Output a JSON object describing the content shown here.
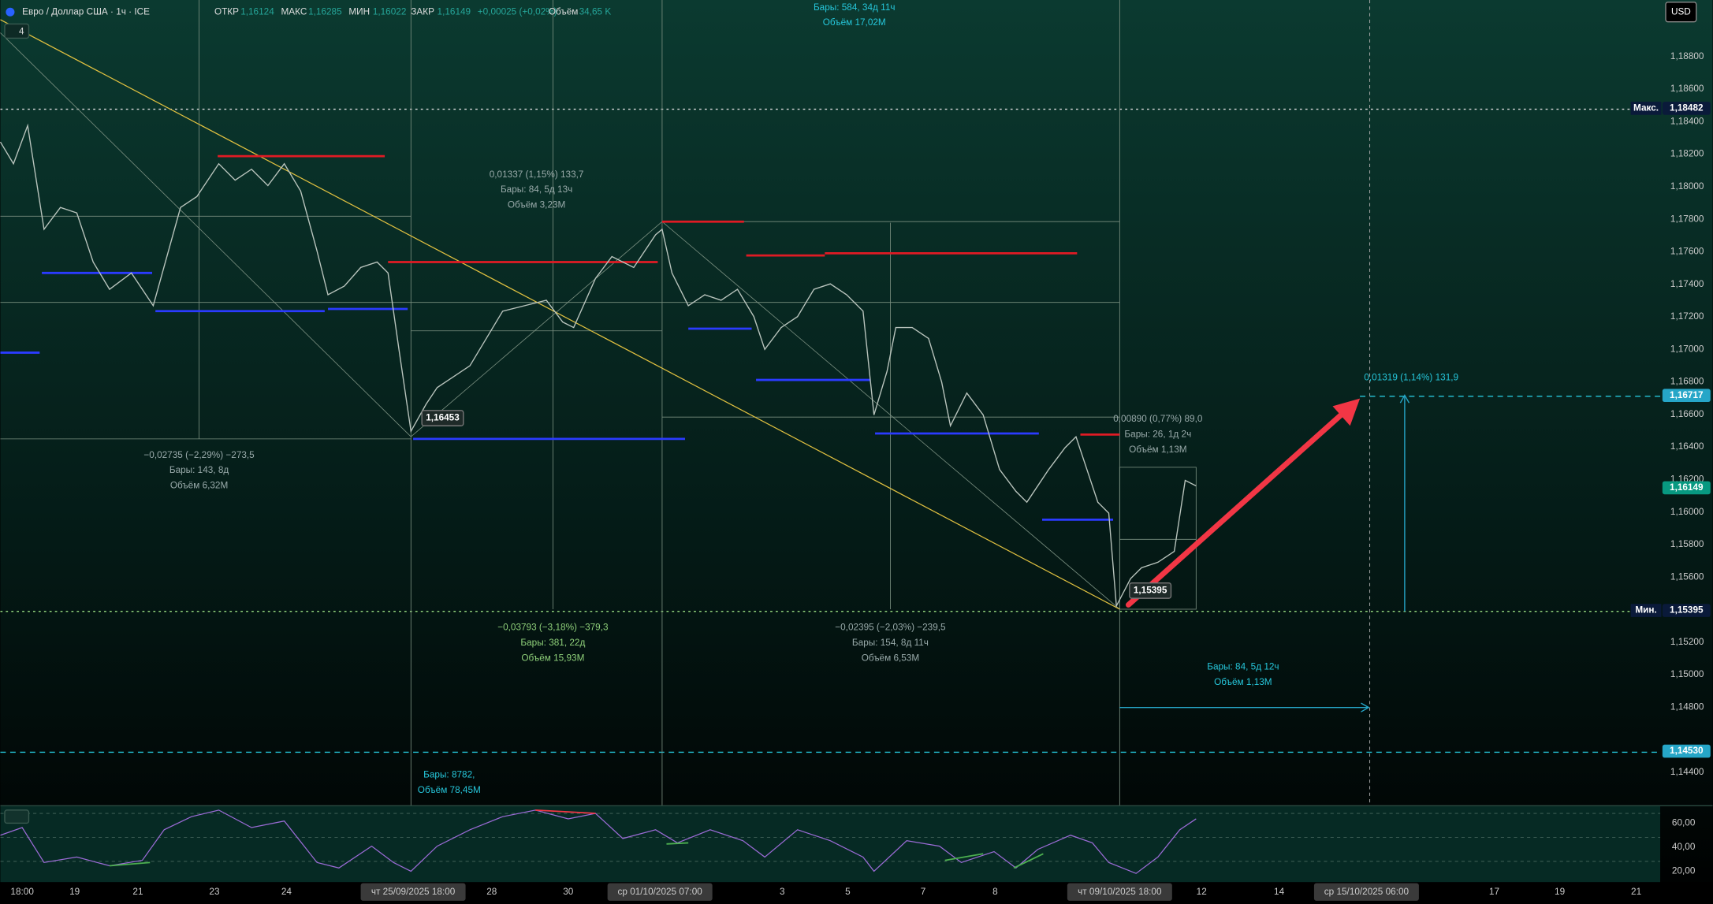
{
  "header": {
    "symbol": "Евро / Доллар США · 1ч · ICE",
    "fields": [
      {
        "label": "ОТКР",
        "value": "1,16124"
      },
      {
        "label": "МАКС",
        "value": "1,16285"
      },
      {
        "label": "МИН",
        "value": "1,16022"
      },
      {
        "label": "ЗАКР",
        "value": "1,16149"
      }
    ],
    "change": "+0,00025 (+0,02%)",
    "volume_label": "Объём",
    "volume": "34,65 K",
    "indicator_count": "4"
  },
  "currency": "USD",
  "price_axis": [
    "1,18800",
    "1,18600",
    "1,18400",
    "1,18200",
    "1,18000",
    "1,17800",
    "1,17600",
    "1,17400",
    "1,17200",
    "1,17000",
    "1,16800",
    "1,16600",
    "1,16400",
    "1,16200",
    "1,16000",
    "1,15800",
    "1,15600",
    "1,15200",
    "1,15000",
    "1,14800",
    "1,14400"
  ],
  "price_tags": [
    {
      "label": "Макс.",
      "value": "1,18482"
    },
    {
      "value": "1,16717"
    },
    {
      "value": "1,16149"
    },
    {
      "label": "Мин.",
      "value": "1,15395"
    },
    {
      "value": "1,14530"
    }
  ],
  "rsi_axis": [
    "60,00",
    "40,00",
    "20,00"
  ],
  "time_axis": [
    "18:00",
    "19",
    "21",
    "23",
    "24",
    "чт 25/09/2025   18:00",
    "28",
    "30",
    "ср 01/10/2025   07:00",
    "3",
    "5",
    "7",
    "8",
    "чт 09/10/2025   18:00",
    "12",
    "14",
    "ср 15/10/2025   06:00",
    "17",
    "19",
    "21"
  ],
  "annotations": [
    {
      "lines": [
        "Бары: 584, 34д 11ч",
        "Объём 17,02M"
      ]
    },
    {
      "lines": [
        "0,01337 (1,15%) 133,7",
        "Бары: 84, 5д 13ч",
        "Объём 3,23M"
      ]
    },
    {
      "lines": [
        "−0,02735 (−2,29%) −273,5",
        "Бары: 143, 8д",
        "Объём 6,32M"
      ]
    },
    {
      "lines": [
        "−0,03793 (−3,18%) −379,3",
        "Бары: 381, 22д",
        "Объём 15,93M"
      ]
    },
    {
      "lines": [
        "−0,02395 (−2,03%) −239,5",
        "Бары: 154, 8д 11ч",
        "Объём 6,53M"
      ]
    },
    {
      "lines": [
        "0,00890 (0,77%) 89,0",
        "Бары: 26, 1д 2ч",
        "Объём 1,13M"
      ]
    },
    {
      "lines": [
        "0,01319 (1,14%) 131,9"
      ]
    },
    {
      "lines": [
        "Бары: 84, 5д 12ч",
        "Объём 1,13M"
      ]
    },
    {
      "lines": [
        "Бары: 8782,",
        "Объём 78,45M"
      ]
    }
  ],
  "point_labels": [
    "1,16453",
    "1,15395"
  ]
}
